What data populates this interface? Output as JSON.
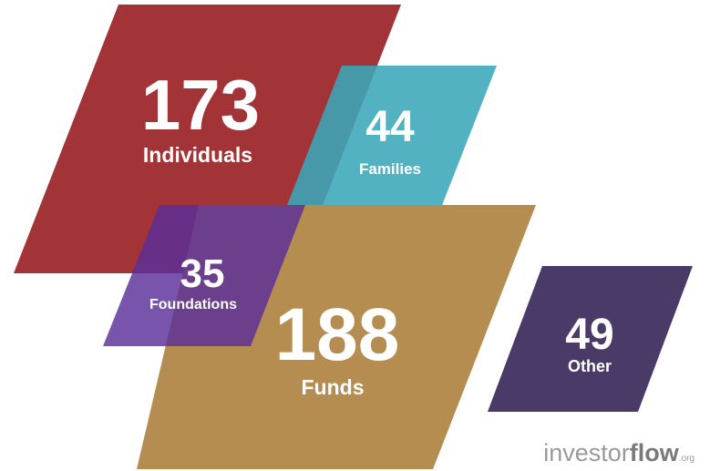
{
  "items": [
    {
      "value": 173,
      "label": "Individuals"
    },
    {
      "value": 44,
      "label": "Families"
    },
    {
      "value": 35,
      "label": "Foundations"
    },
    {
      "value": 188,
      "label": "Funds"
    },
    {
      "value": 49,
      "label": "Other"
    }
  ],
  "logo": {
    "main": "investor",
    "bold": "flow",
    "suffix": ".org"
  }
}
